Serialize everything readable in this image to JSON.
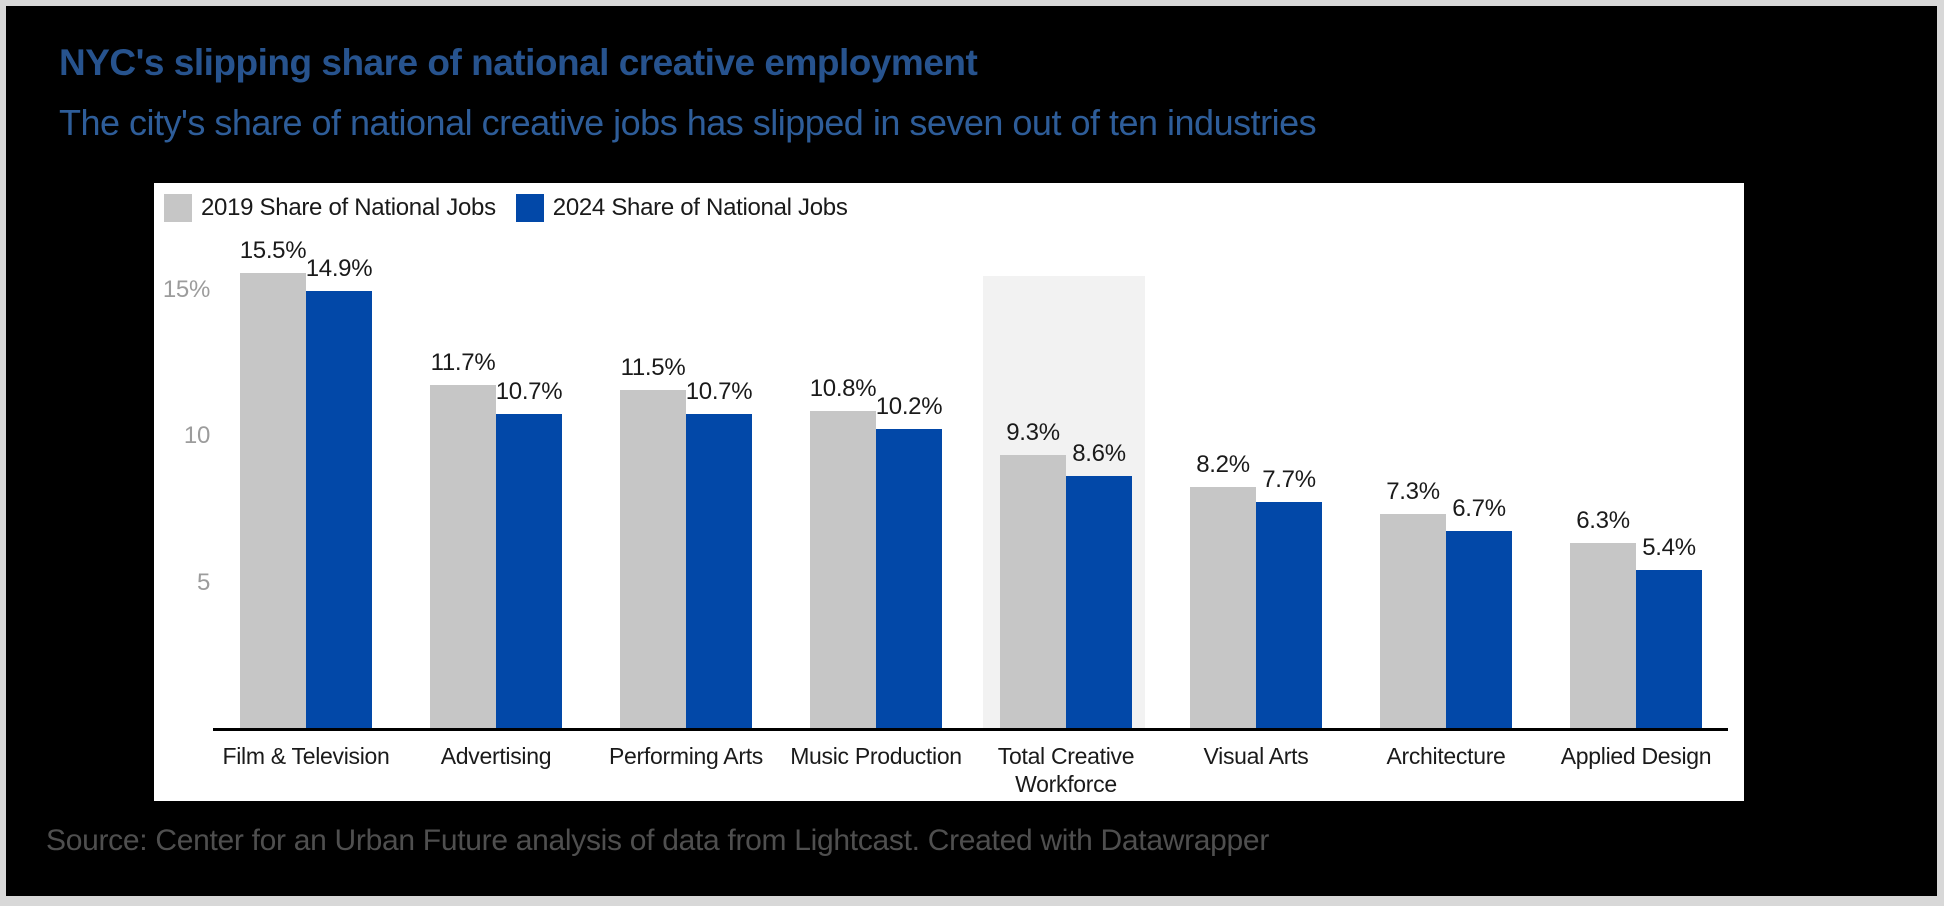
{
  "header": {
    "title": "NYC's slipping share of national creative employment",
    "subtitle": "The city's share of national creative jobs has slipped in seven out of ten industries"
  },
  "legend": {
    "items": [
      {
        "label": "2019 Share of National Jobs",
        "color": "#c6c6c6"
      },
      {
        "label": "2024 Share of National Jobs",
        "color": "#0248a8"
      }
    ]
  },
  "chart_data": {
    "type": "bar",
    "categories": [
      "Film & Television",
      "Advertising",
      "Performing Arts",
      "Music Production",
      "Total Creative Workforce",
      "Visual Arts",
      "Architecture",
      "Applied Design"
    ],
    "series": [
      {
        "name": "2019 Share of National Jobs",
        "color": "#c6c6c6",
        "values": [
          15.5,
          11.7,
          11.5,
          10.8,
          9.3,
          8.2,
          7.3,
          6.3
        ]
      },
      {
        "name": "2024 Share of National Jobs",
        "color": "#0248a8",
        "values": [
          14.9,
          10.7,
          10.7,
          10.2,
          8.6,
          7.7,
          6.7,
          5.4
        ]
      }
    ],
    "value_suffix": "%",
    "y_ticks": [
      {
        "label": "15%",
        "value": 15
      },
      {
        "label": "10",
        "value": 10
      },
      {
        "label": "5",
        "value": 5
      }
    ],
    "ylim": [
      0,
      15.5
    ],
    "grid": false,
    "legend_position": "top-left",
    "highlighted_category": "Total Creative Workforce",
    "highlighted_index": 4
  },
  "footer": {
    "source": "Source: Center for an Urban Future analysis of data from Lightcast. Created with Datawrapper"
  },
  "colors": {
    "canvas_background": "#000000",
    "frame_border": "#d8d8d8",
    "chart_background": "#ffffff",
    "title_text": "#27538e",
    "subtitle_text": "#2e5d99",
    "bar_2019": "#c6c6c6",
    "bar_2024": "#0248a8",
    "highlight_band": "#f2f2f2",
    "axis_line": "#000000",
    "y_tick_text": "#9c9c9c",
    "value_label_text": "#1a1a1a",
    "category_label_text": "#1a1a1a",
    "legend_text": "#1a1a1a",
    "source_text": "#4f4f4f"
  }
}
